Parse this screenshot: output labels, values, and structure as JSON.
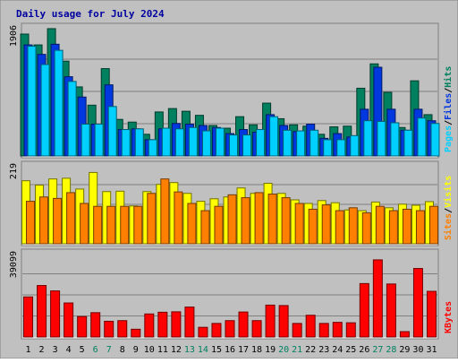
{
  "chart_data": {
    "type": "bar",
    "title": "Daily usage for July 2024",
    "categories": [
      "1",
      "2",
      "3",
      "4",
      "5",
      "6",
      "7",
      "8",
      "9",
      "10",
      "11",
      "12",
      "13",
      "14",
      "15",
      "16",
      "17",
      "18",
      "19",
      "20",
      "21",
      "22",
      "23",
      "24",
      "25",
      "26",
      "27",
      "28",
      "29",
      "30",
      "31"
    ],
    "weekend_days": [
      "6",
      "7",
      "13",
      "14",
      "20",
      "21",
      "27",
      "28"
    ],
    "panels": [
      {
        "name": "hits-files-pages",
        "max_label": "1906",
        "ylim": [
          0,
          1906
        ],
        "right_labels": [
          "Pages",
          "/",
          "Files",
          "/",
          "Hits"
        ],
        "series": [
          {
            "name": "Hits",
            "color": "#00805F",
            "values": [
              1800,
              1640,
              1880,
              1400,
              1020,
              750,
              1290,
              540,
              500,
              320,
              650,
              700,
              660,
              600,
              450,
              410,
              580,
              460,
              780,
              550,
              460,
              440,
              320,
              430,
              440,
              1000,
              1360,
              940,
              420,
              1110,
              610
            ]
          },
          {
            "name": "Files",
            "color": "#0038E0",
            "values": [
              1640,
              1500,
              1650,
              1170,
              870,
              470,
              1050,
              390,
              400,
              240,
              400,
              480,
              470,
              450,
              420,
              330,
              390,
              350,
              610,
              450,
              360,
              470,
              260,
              330,
              280,
              690,
              1310,
              690,
              380,
              690,
              520
            ]
          },
          {
            "name": "Pages",
            "color": "#00D0FF",
            "values": [
              1620,
              1350,
              1560,
              1100,
              470,
              470,
              730,
              390,
              400,
              240,
              410,
              400,
              420,
              370,
              410,
              310,
              310,
              390,
              580,
              380,
              370,
              380,
              240,
              240,
              300,
              520,
              510,
              490,
              380,
              560,
              480
            ]
          }
        ]
      },
      {
        "name": "visits-sites",
        "max_label": "219",
        "ylim": [
          0,
          219
        ],
        "right_labels": [
          "Sites",
          "/",
          "Visits"
        ],
        "series": [
          {
            "name": "Visits",
            "color": "#FFFF00",
            "values": [
              175,
              163,
              180,
              182,
              152,
              198,
              145,
              146,
              105,
              145,
              165,
              170,
              140,
              118,
              125,
              130,
              155,
              140,
              168,
              140,
              122,
              112,
              120,
              114,
              94,
              92,
              116,
              100,
              110,
              107,
              117
            ]
          },
          {
            "name": "Sites",
            "color": "#FF8000",
            "values": [
              118,
              130,
              126,
              142,
              112,
              104,
              104,
              104,
              104,
              140,
              180,
              144,
              112,
              92,
              104,
              136,
              128,
              142,
              138,
              128,
              112,
              96,
              108,
              92,
              100,
              86,
              104,
              92,
              96,
              92,
              104
            ]
          }
        ]
      },
      {
        "name": "kbytes",
        "max_label": "39099",
        "ylim": [
          0,
          39099
        ],
        "right_labels": [
          "KBytes"
        ],
        "series": [
          {
            "name": "KBytes",
            "color": "#FF0000",
            "values": [
              18600,
              23900,
              21400,
              15800,
              9500,
              11300,
              7300,
              7600,
              3600,
              10700,
              11500,
              11700,
              13900,
              4500,
              6300,
              7600,
              11600,
              7600,
              14800,
              14600,
              6300,
              10100,
              6300,
              6800,
              6600,
              24800,
              35800,
              24600,
              2500,
              31800,
              21200
            ]
          }
        ]
      }
    ]
  }
}
